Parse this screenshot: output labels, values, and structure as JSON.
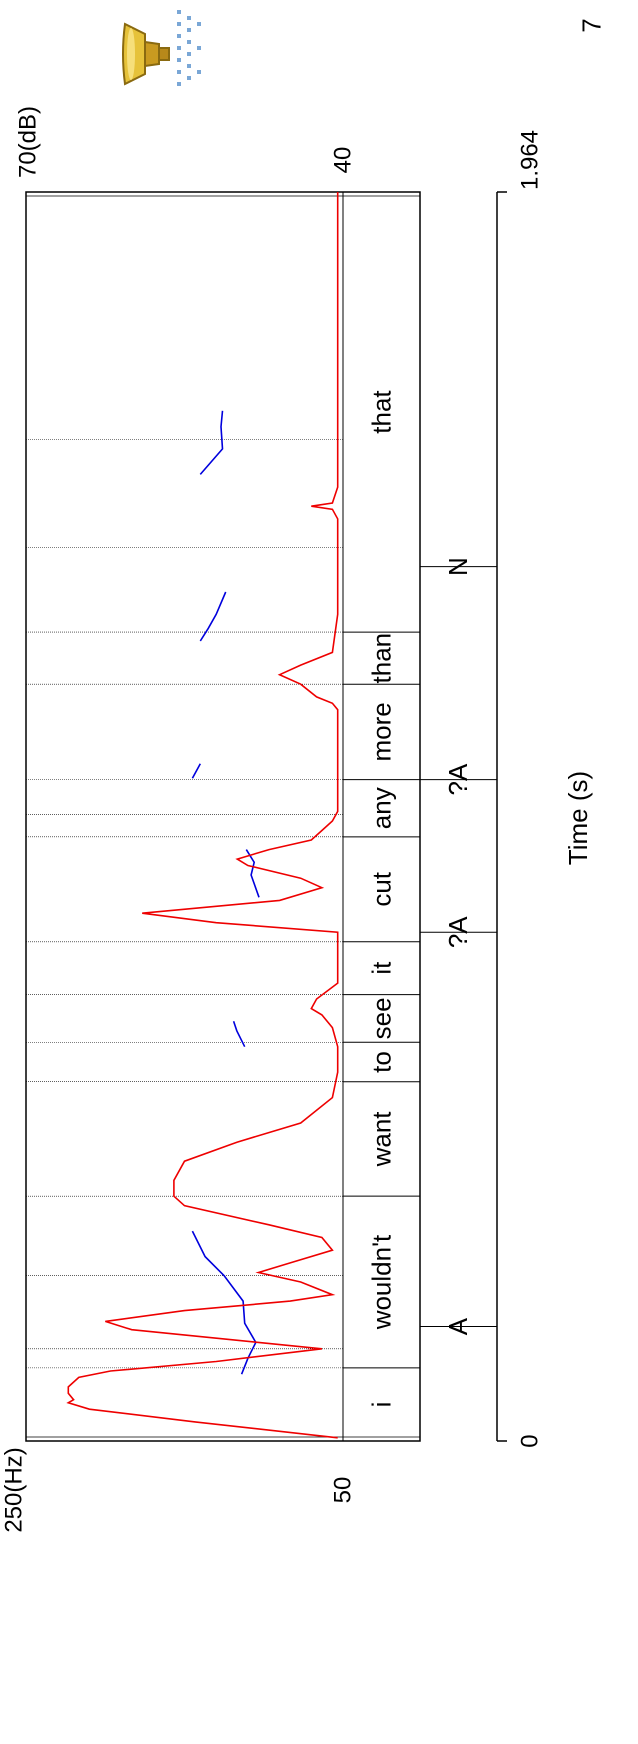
{
  "page_number": "7",
  "speaker_icon": "speaker-icon",
  "colors": {
    "f0": "#0000dd",
    "intensity": "#ee0000",
    "grid": "#000000"
  },
  "chart_data": {
    "type": "line",
    "xlabel": "Time (s)",
    "x_range": [
      0,
      1.964
    ],
    "x_ticks": [
      {
        "value": 0,
        "label": "0"
      },
      {
        "value": 1.964,
        "label": "1.964"
      }
    ],
    "left_axis": {
      "top_label": "250(Hz)",
      "bottom_label": "50",
      "range": [
        50,
        250
      ]
    },
    "right_axis": {
      "top_label": "70(dB)",
      "bottom_label": "40",
      "range": [
        40,
        70
      ]
    },
    "words": [
      {
        "text": "i",
        "start": 0.0,
        "end": 0.115
      },
      {
        "text": "wouldn't",
        "start": 0.115,
        "end": 0.385
      },
      {
        "text": "want",
        "start": 0.385,
        "end": 0.565
      },
      {
        "text": "to",
        "start": 0.565,
        "end": 0.627
      },
      {
        "text": "see",
        "start": 0.627,
        "end": 0.702
      },
      {
        "text": "it",
        "start": 0.702,
        "end": 0.785
      },
      {
        "text": "cut",
        "start": 0.785,
        "end": 0.95
      },
      {
        "text": "any",
        "start": 0.95,
        "end": 1.04
      },
      {
        "text": "more",
        "start": 1.04,
        "end": 1.19
      },
      {
        "text": "than",
        "start": 1.19,
        "end": 1.272
      },
      {
        "text": "that",
        "start": 1.272,
        "end": 1.964
      }
    ],
    "boundaries": [
      0.115,
      0.145,
      0.26,
      0.385,
      0.565,
      0.627,
      0.702,
      0.785,
      0.95,
      0.985,
      1.04,
      1.19,
      1.272,
      1.405,
      1.575,
      1.964
    ],
    "tones": [
      {
        "text": "A",
        "time": 0.18
      },
      {
        "text": "?A",
        "time": 0.8
      },
      {
        "text": "?A",
        "time": 1.04
      },
      {
        "text": "N",
        "time": 1.375
      }
    ],
    "series": [
      {
        "name": "F0",
        "axis": "left",
        "segments": [
          [
            [
              0.105,
              114
            ],
            [
              0.13,
              110
            ],
            [
              0.155,
              105
            ],
            [
              0.185,
              112
            ],
            [
              0.22,
              113
            ],
            [
              0.26,
              125
            ],
            [
              0.29,
              137
            ],
            [
              0.33,
              145
            ]
          ],
          [
            [
              0.62,
              112
            ],
            [
              0.645,
              117
            ],
            [
              0.66,
              119
            ]
          ],
          [
            [
              0.855,
              103
            ],
            [
              0.89,
              108
            ],
            [
              0.91,
              106
            ],
            [
              0.93,
              111
            ]
          ],
          [
            [
              1.042,
              145
            ],
            [
              1.065,
              140
            ]
          ],
          [
            [
              1.258,
              140
            ],
            [
              1.278,
              135
            ],
            [
              1.3,
              130
            ],
            [
              1.335,
              124
            ]
          ],
          [
            [
              1.52,
              140
            ],
            [
              1.54,
              133
            ],
            [
              1.56,
              126
            ],
            [
              1.595,
              127
            ],
            [
              1.62,
              126
            ]
          ]
        ]
      },
      {
        "name": "Intensity",
        "axis": "right",
        "segments": [
          [
            [
              0.005,
              40.5
            ],
            [
              0.03,
              54
            ],
            [
              0.05,
              64
            ],
            [
              0.06,
              66
            ],
            [
              0.065,
              65.5
            ],
            [
              0.075,
              66
            ],
            [
              0.085,
              66
            ],
            [
              0.1,
              65
            ],
            [
              0.11,
              62
            ],
            [
              0.125,
              52
            ],
            [
              0.145,
              42
            ],
            [
              0.155,
              48
            ],
            [
              0.175,
              60
            ],
            [
              0.188,
              62.5
            ],
            [
              0.205,
              55
            ],
            [
              0.22,
              45
            ],
            [
              0.23,
              41
            ],
            [
              0.25,
              44
            ],
            [
              0.265,
              48
            ],
            [
              0.28,
              45
            ],
            [
              0.3,
              41
            ],
            [
              0.32,
              42
            ],
            [
              0.34,
              47
            ],
            [
              0.37,
              55
            ],
            [
              0.385,
              56
            ],
            [
              0.41,
              56
            ],
            [
              0.44,
              55
            ],
            [
              0.47,
              50
            ],
            [
              0.5,
              44
            ],
            [
              0.54,
              41
            ],
            [
              0.58,
              40.5
            ],
            [
              0.62,
              40.5
            ],
            [
              0.65,
              41
            ],
            [
              0.67,
              42
            ],
            [
              0.68,
              43
            ],
            [
              0.695,
              42.5
            ],
            [
              0.72,
              40.5
            ],
            [
              0.78,
              40.5
            ],
            [
              0.8,
              40.5
            ],
            [
              0.815,
              52
            ],
            [
              0.83,
              59
            ],
            [
              0.85,
              46
            ],
            [
              0.87,
              42
            ],
            [
              0.885,
              44
            ],
            [
              0.905,
              49
            ],
            [
              0.915,
              50
            ],
            [
              0.93,
              47
            ],
            [
              0.945,
              43
            ],
            [
              0.96,
              42
            ],
            [
              0.975,
              41
            ],
            [
              0.99,
              40.5
            ],
            [
              1.05,
              40.5
            ],
            [
              1.15,
              40.5
            ],
            [
              1.16,
              41
            ],
            [
              1.17,
              42.5
            ],
            [
              1.19,
              44
            ],
            [
              1.205,
              46
            ],
            [
              1.22,
              44
            ],
            [
              1.24,
              41
            ],
            [
              1.3,
              40.5
            ],
            [
              1.4,
              40.5
            ],
            [
              1.45,
              40.5
            ],
            [
              1.465,
              41
            ],
            [
              1.47,
              43
            ],
            [
              1.475,
              41
            ],
            [
              1.5,
              40.5
            ],
            [
              1.964,
              40.5
            ]
          ]
        ]
      }
    ]
  }
}
